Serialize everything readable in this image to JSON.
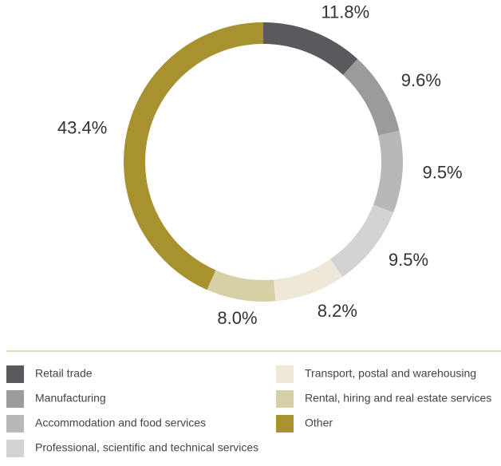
{
  "chart_data": {
    "type": "donut",
    "categories": [
      "Retail trade",
      "Manufacturing",
      "Accommodation and food services",
      "Professional, scientific and technical services",
      "Transport, postal and warehousing",
      "Rental, hiring and real estate services",
      "Other"
    ],
    "values": [
      11.8,
      9.6,
      9.5,
      9.5,
      8.2,
      8.0,
      43.4
    ],
    "value_labels": [
      "11.8%",
      "9.6%",
      "9.5%",
      "9.5%",
      "8.2%",
      "8.0%",
      "43.4%"
    ],
    "colors": [
      "#5b595d",
      "#9b9b9b",
      "#b8b8b8",
      "#d3d3d3",
      "#ede8d8",
      "#d7d0a6",
      "#a8912f"
    ]
  }
}
